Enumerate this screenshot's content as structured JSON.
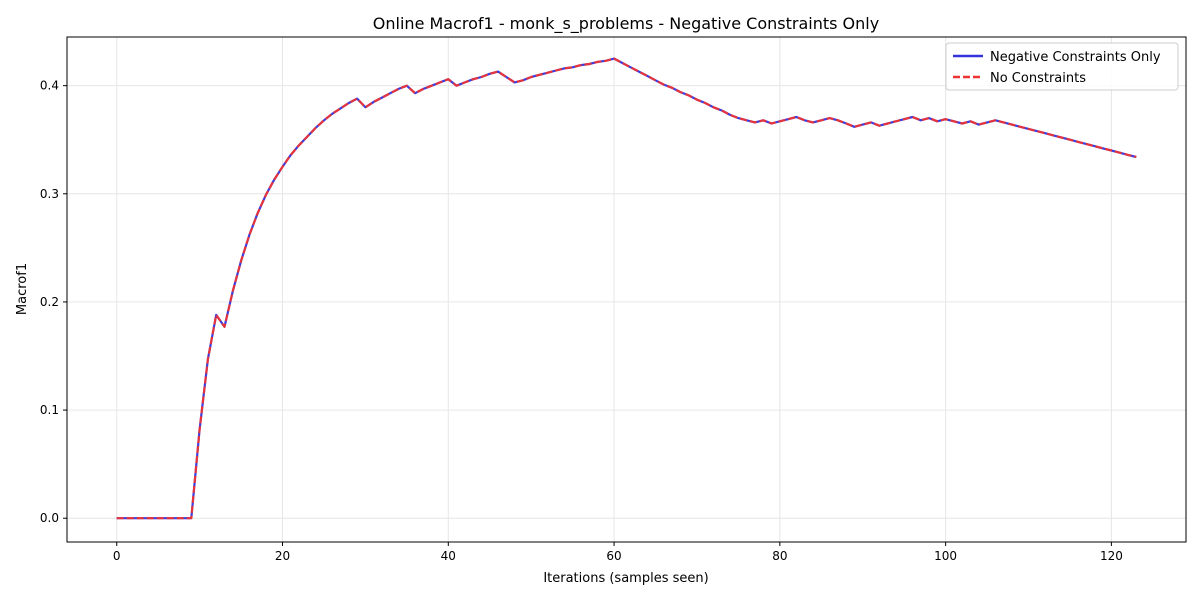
{
  "chart_data": {
    "type": "line",
    "title": "Online Macrof1 - monk_s_problems - Negative Constraints Only",
    "xlabel": "Iterations (samples seen)",
    "ylabel": "Macrof1",
    "xlim": [
      -6,
      129
    ],
    "ylim": [
      -0.022,
      0.445
    ],
    "xticks": [
      0,
      20,
      40,
      60,
      80,
      100,
      120
    ],
    "yticks": [
      0.0,
      0.1,
      0.2,
      0.3,
      0.4
    ],
    "ytick_labels": [
      "0.0",
      "0.1",
      "0.2",
      "0.3",
      "0.4"
    ],
    "grid": true,
    "legend_position": "top-right",
    "series": [
      {
        "name": "Negative Constraints Only",
        "color": "#3333dd",
        "style": "solid",
        "x": [
          0,
          1,
          2,
          3,
          4,
          5,
          6,
          7,
          8,
          9,
          10,
          11,
          12,
          13,
          14,
          15,
          16,
          17,
          18,
          19,
          20,
          21,
          22,
          23,
          24,
          25,
          26,
          27,
          28,
          29,
          30,
          31,
          32,
          33,
          34,
          35,
          36,
          37,
          38,
          39,
          40,
          41,
          42,
          43,
          44,
          45,
          46,
          47,
          48,
          49,
          50,
          51,
          52,
          53,
          54,
          55,
          56,
          57,
          58,
          59,
          60,
          61,
          62,
          63,
          64,
          65,
          66,
          67,
          68,
          69,
          70,
          71,
          72,
          73,
          74,
          75,
          76,
          77,
          78,
          79,
          80,
          81,
          82,
          83,
          84,
          85,
          86,
          87,
          88,
          89,
          90,
          91,
          92,
          93,
          94,
          95,
          96,
          97,
          98,
          99,
          100,
          101,
          102,
          103,
          104,
          105,
          106,
          107,
          108,
          109,
          110,
          111,
          112,
          113,
          114,
          115,
          116,
          117,
          118,
          119,
          120,
          121,
          122,
          123
        ],
        "y": [
          0.0,
          0.0,
          0.0,
          0.0,
          0.0,
          0.0,
          0.0,
          0.0,
          0.0,
          0.0,
          0.082,
          0.147,
          0.188,
          0.177,
          0.21,
          0.238,
          0.262,
          0.282,
          0.299,
          0.313,
          0.325,
          0.336,
          0.345,
          0.353,
          0.361,
          0.368,
          0.374,
          0.379,
          0.384,
          0.388,
          0.38,
          0.385,
          0.389,
          0.393,
          0.397,
          0.4,
          0.393,
          0.397,
          0.4,
          0.403,
          0.406,
          0.4,
          0.403,
          0.406,
          0.408,
          0.411,
          0.413,
          0.408,
          0.403,
          0.405,
          0.408,
          0.41,
          0.412,
          0.414,
          0.416,
          0.417,
          0.419,
          0.42,
          0.422,
          0.423,
          0.425,
          0.421,
          0.417,
          0.413,
          0.409,
          0.405,
          0.401,
          0.398,
          0.394,
          0.391,
          0.387,
          0.384,
          0.38,
          0.377,
          0.373,
          0.37,
          0.368,
          0.366,
          0.368,
          0.365,
          0.367,
          0.369,
          0.371,
          0.368,
          0.366,
          0.368,
          0.37,
          0.368,
          0.365,
          0.362,
          0.364,
          0.366,
          0.363,
          0.365,
          0.367,
          0.369,
          0.371,
          0.368,
          0.37,
          0.367,
          0.369,
          0.367,
          0.365,
          0.367,
          0.364,
          0.366,
          0.368,
          0.366,
          0.364,
          0.362,
          0.36,
          0.358,
          0.356,
          0.354,
          0.352,
          0.35,
          0.348,
          0.346,
          0.344,
          0.342,
          0.34,
          0.338,
          0.336,
          0.334
        ]
      },
      {
        "name": "No Constraints",
        "color": "#ee3333",
        "style": "dashed",
        "x": [
          0,
          1,
          2,
          3,
          4,
          5,
          6,
          7,
          8,
          9,
          10,
          11,
          12,
          13,
          14,
          15,
          16,
          17,
          18,
          19,
          20,
          21,
          22,
          23,
          24,
          25,
          26,
          27,
          28,
          29,
          30,
          31,
          32,
          33,
          34,
          35,
          36,
          37,
          38,
          39,
          40,
          41,
          42,
          43,
          44,
          45,
          46,
          47,
          48,
          49,
          50,
          51,
          52,
          53,
          54,
          55,
          56,
          57,
          58,
          59,
          60,
          61,
          62,
          63,
          64,
          65,
          66,
          67,
          68,
          69,
          70,
          71,
          72,
          73,
          74,
          75,
          76,
          77,
          78,
          79,
          80,
          81,
          82,
          83,
          84,
          85,
          86,
          87,
          88,
          89,
          90,
          91,
          92,
          93,
          94,
          95,
          96,
          97,
          98,
          99,
          100,
          101,
          102,
          103,
          104,
          105,
          106,
          107,
          108,
          109,
          110,
          111,
          112,
          113,
          114,
          115,
          116,
          117,
          118,
          119,
          120,
          121,
          122,
          123
        ],
        "y": [
          0.0,
          0.0,
          0.0,
          0.0,
          0.0,
          0.0,
          0.0,
          0.0,
          0.0,
          0.0,
          0.082,
          0.147,
          0.188,
          0.177,
          0.21,
          0.238,
          0.262,
          0.282,
          0.299,
          0.313,
          0.325,
          0.336,
          0.345,
          0.353,
          0.361,
          0.368,
          0.374,
          0.379,
          0.384,
          0.388,
          0.38,
          0.385,
          0.389,
          0.393,
          0.397,
          0.4,
          0.393,
          0.397,
          0.4,
          0.403,
          0.406,
          0.4,
          0.403,
          0.406,
          0.408,
          0.411,
          0.413,
          0.408,
          0.403,
          0.405,
          0.408,
          0.41,
          0.412,
          0.414,
          0.416,
          0.417,
          0.419,
          0.42,
          0.422,
          0.423,
          0.425,
          0.421,
          0.417,
          0.413,
          0.409,
          0.405,
          0.401,
          0.398,
          0.394,
          0.391,
          0.387,
          0.384,
          0.38,
          0.377,
          0.373,
          0.37,
          0.368,
          0.366,
          0.368,
          0.365,
          0.367,
          0.369,
          0.371,
          0.368,
          0.366,
          0.368,
          0.37,
          0.368,
          0.365,
          0.362,
          0.364,
          0.366,
          0.363,
          0.365,
          0.367,
          0.369,
          0.371,
          0.368,
          0.37,
          0.367,
          0.369,
          0.367,
          0.365,
          0.367,
          0.364,
          0.366,
          0.368,
          0.366,
          0.364,
          0.362,
          0.36,
          0.358,
          0.356,
          0.354,
          0.352,
          0.35,
          0.348,
          0.346,
          0.344,
          0.342,
          0.34,
          0.338,
          0.336,
          0.334
        ]
      }
    ]
  }
}
